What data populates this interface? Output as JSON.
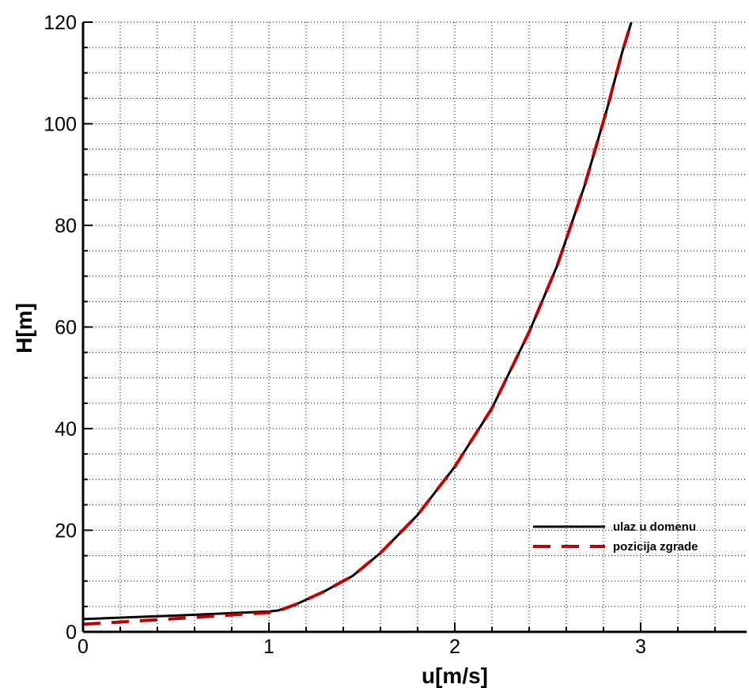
{
  "chart_data": {
    "type": "line",
    "xlabel": "u[m/s]",
    "ylabel": "H[m]",
    "xlim": [
      0,
      3.57
    ],
    "ylim": [
      0,
      120
    ],
    "x_ticks": [
      "0",
      "1",
      "2",
      "3"
    ],
    "y_ticks": [
      "0",
      "20",
      "40",
      "60",
      "80",
      "100",
      "120"
    ],
    "grid": true,
    "legend_position": "bottom-right",
    "series": [
      {
        "name": "ulaz u domenu",
        "color": "#000000",
        "style": "solid",
        "points": [
          [
            0.0,
            2.5
          ],
          [
            0.5,
            3.2
          ],
          [
            1.0,
            4.0
          ],
          [
            1.05,
            4.2
          ],
          [
            1.15,
            5.5
          ],
          [
            1.3,
            8.0
          ],
          [
            1.45,
            11.0
          ],
          [
            1.6,
            15.5
          ],
          [
            1.8,
            23.0
          ],
          [
            2.0,
            32.5
          ],
          [
            2.2,
            44.0
          ],
          [
            2.4,
            59.0
          ],
          [
            2.55,
            72.0
          ],
          [
            2.7,
            88.0
          ],
          [
            2.82,
            103.0
          ],
          [
            2.9,
            114.0
          ],
          [
            2.95,
            120.0
          ]
        ]
      },
      {
        "name": "pozicija zgrade",
        "color": "#c00000",
        "style": "dashed",
        "points": [
          [
            0.0,
            1.5
          ],
          [
            0.5,
            2.6
          ],
          [
            1.0,
            3.8
          ],
          [
            1.05,
            4.1
          ],
          [
            1.15,
            5.5
          ],
          [
            1.3,
            8.0
          ],
          [
            1.45,
            11.0
          ],
          [
            1.6,
            15.5
          ],
          [
            1.8,
            23.0
          ],
          [
            2.0,
            32.5
          ],
          [
            2.2,
            44.0
          ],
          [
            2.4,
            59.0
          ],
          [
            2.55,
            72.0
          ],
          [
            2.7,
            88.0
          ],
          [
            2.82,
            103.0
          ],
          [
            2.9,
            114.0
          ],
          [
            2.95,
            120.0
          ]
        ]
      }
    ]
  }
}
